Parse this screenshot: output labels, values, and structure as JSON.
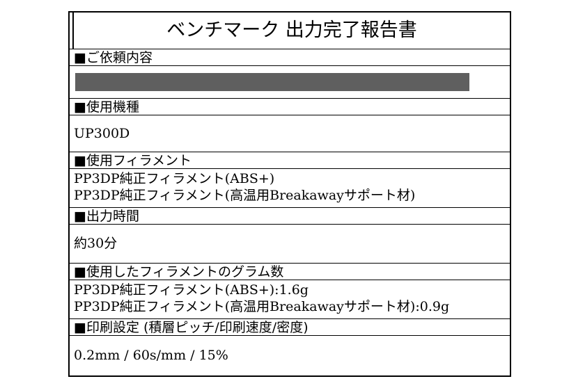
{
  "title": "ベンチマーク 出力完了報告書",
  "sections": [
    {
      "header": "■ご依頼内容",
      "lines": [],
      "redacted": true
    },
    {
      "header": "■使用機種",
      "lines": [
        "UP300D"
      ]
    },
    {
      "header": "■使用フィラメント",
      "lines": [
        "PP3DP純正フィラメント(ABS+)",
        "PP3DP純正フィラメント(高温用Breakawayサポート材)"
      ]
    },
    {
      "header": "■出力時間",
      "lines": [
        "約30分"
      ]
    },
    {
      "header": "■使用したフィラメントのグラム数",
      "lines": [
        "PP3DP純正フィラメント(ABS+):1.6g",
        "PP3DP純正フィラメント(高温用Breakawayサポート材):0.9g"
      ]
    },
    {
      "header": "■印刷設定 (積層ピッチ/印刷速度/密度)",
      "lines": [
        "0.2mm / 60s/mm / 15%"
      ]
    }
  ],
  "colors": {
    "border": "#000000",
    "redaction": "#5f5f5f"
  }
}
